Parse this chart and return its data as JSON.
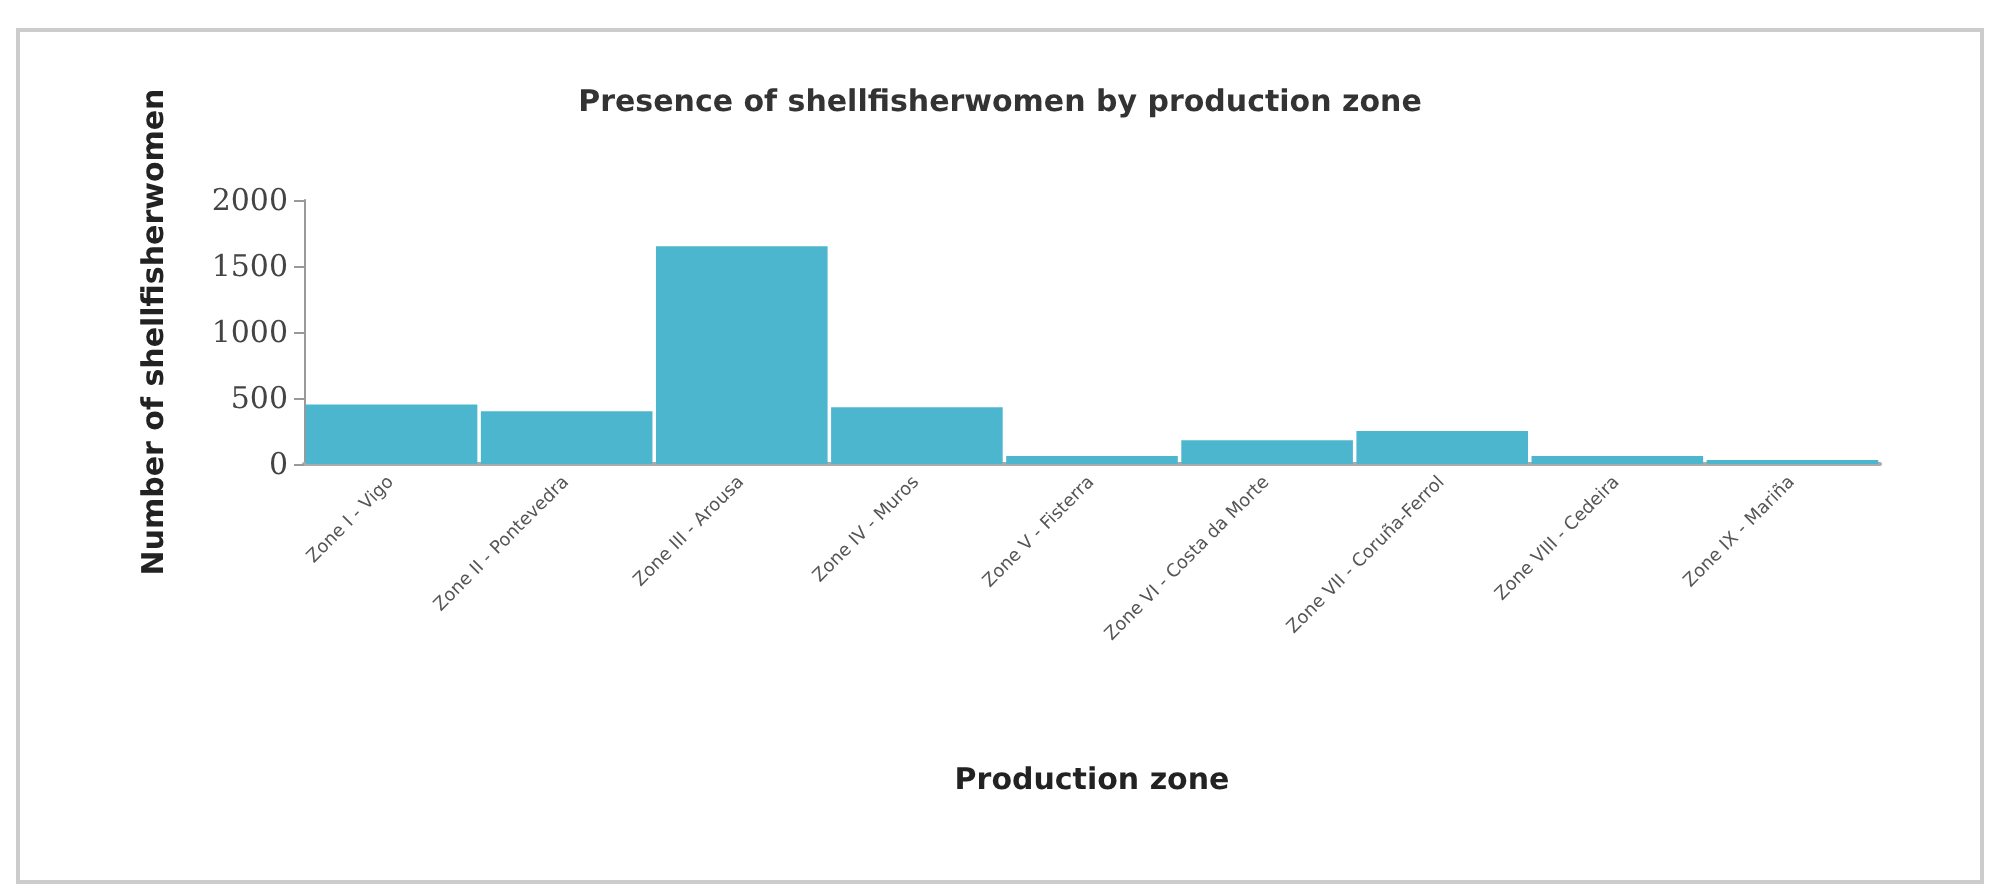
{
  "chart_data": {
    "type": "bar",
    "title": "Presence of shellfisherwomen by production zone",
    "xlabel": "Production zone",
    "ylabel": "Number of shellfisherwomen",
    "categories": [
      "Zone I - Vigo",
      "Zone II - Pontevedra",
      "Zone III - Arousa",
      "Zone IV - Muros",
      "Zone V - Fisterra",
      "Zone VI - Costa da Morte",
      "Zone VII - Coruña-Ferrol",
      "Zone VIII - Cedeira",
      "Zone IX - Mariña"
    ],
    "values": [
      450,
      400,
      1650,
      430,
      60,
      180,
      250,
      60,
      30
    ],
    "color": "#4db6cf",
    "ylim": [
      0,
      2000
    ],
    "yticks": [
      0,
      500,
      1000,
      1500,
      2000
    ],
    "grid": false
  }
}
